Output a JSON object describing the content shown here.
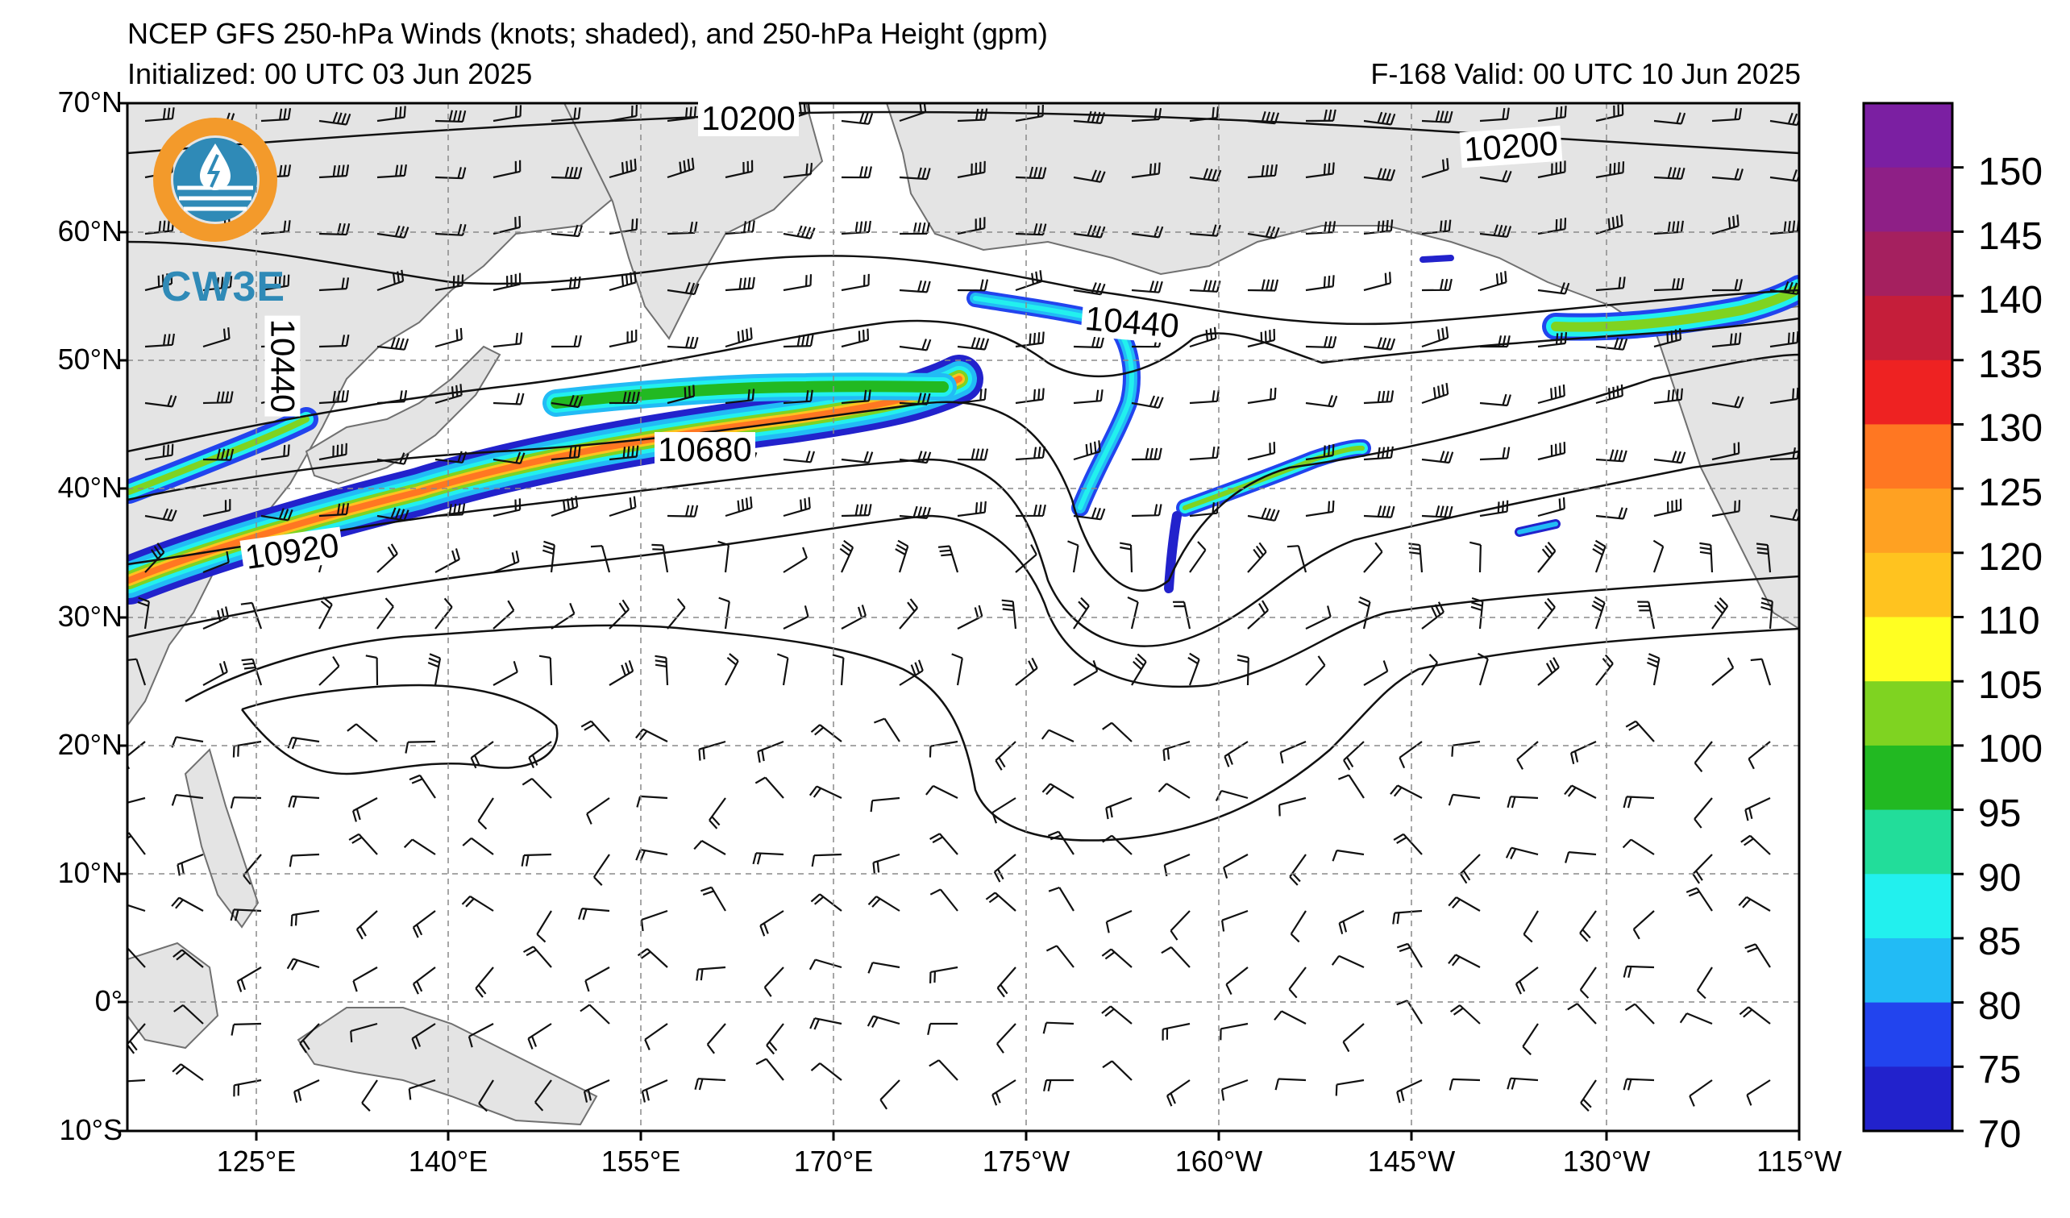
{
  "header": {
    "title": "NCEP GFS 250-hPa Winds (knots; shaded), and 250-hPa Height (gpm)",
    "initialized": "Initialized: 00 UTC 03 Jun 2025",
    "valid": "F-168  Valid: 00 UTC 10 Jun 2025"
  },
  "axes": {
    "lat_labels": [
      "70°N",
      "60°N",
      "50°N",
      "40°N",
      "30°N",
      "20°N",
      "10°N",
      "0°",
      "10°S"
    ],
    "lon_labels": [
      "125°E",
      "140°E",
      "155°E",
      "170°E",
      "175°W",
      "160°W",
      "145°W",
      "130°W",
      "115°W"
    ]
  },
  "colorbar": {
    "labels": [
      "150",
      "145",
      "140",
      "135",
      "130",
      "125",
      "120",
      "110",
      "105",
      "100",
      "95",
      "90",
      "85",
      "80",
      "75",
      "70"
    ],
    "colors": [
      "#7b1fa2",
      "#8e1f86",
      "#a5205f",
      "#c51e3a",
      "#ee2222",
      "#ff7722",
      "#ffa122",
      "#ffc31f",
      "#ffff22",
      "#7fd321",
      "#22b922",
      "#22dd9a",
      "#22f0ee",
      "#22bbf5",
      "#2244ee",
      "#2222cc"
    ]
  },
  "contours": {
    "labels": [
      "10200",
      "10200",
      "10440",
      "10440",
      "10680",
      "10920"
    ]
  },
  "logo": {
    "text": "CW3E",
    "ring_color": "#f39a2b",
    "accent_color": "#2f8ab7"
  }
}
